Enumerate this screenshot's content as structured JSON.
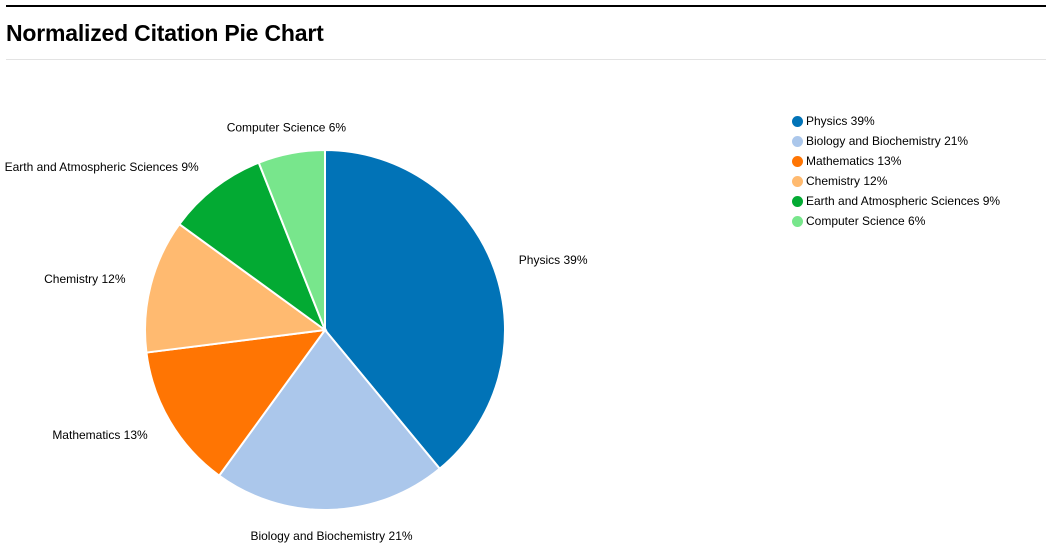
{
  "page": {
    "title": "Normalized Citation Pie Chart"
  },
  "chart_data": {
    "type": "pie",
    "title": "",
    "slices": [
      {
        "label": "Physics",
        "percent_label": "39%",
        "value": 39,
        "color": "#0173b7",
        "display": "Physics 39%"
      },
      {
        "label": "Biology and Biochemistry",
        "percent_label": "21%",
        "value": 21,
        "color": "#abc7eb",
        "display": "Biology and Biochemistry 21%"
      },
      {
        "label": "Mathematics",
        "percent_label": "13%",
        "value": 13,
        "color": "#ff7503",
        "display": "Mathematics 13%"
      },
      {
        "label": "Chemistry",
        "percent_label": "12%",
        "value": 12,
        "color": "#ffba70",
        "display": "Chemistry 12%"
      },
      {
        "label": "Earth and Atmospheric Sciences",
        "percent_label": "9%",
        "value": 9,
        "color": "#03aa33",
        "display": "Earth and Atmospheric Sciences 9%"
      },
      {
        "label": "Computer Science",
        "percent_label": "6%",
        "value": 6,
        "color": "#78e68c",
        "display": "Computer Science 6%"
      }
    ],
    "start_angle": "12 o'clock",
    "direction": "clockwise",
    "legend_position": "right"
  }
}
